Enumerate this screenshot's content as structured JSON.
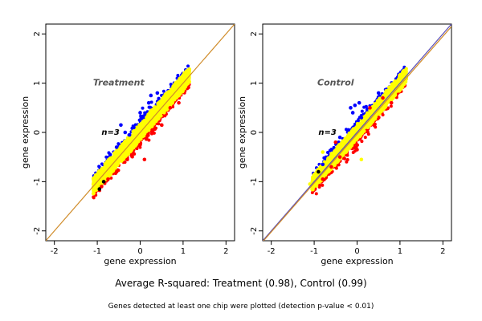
{
  "chart_data": [
    {
      "type": "scatter",
      "title": "Treatment",
      "annotation": "n=3",
      "xlabel": "gene expression",
      "ylabel": "gene expression",
      "xlim": [
        -2.2,
        2.2
      ],
      "ylim": [
        -2.2,
        2.2
      ],
      "xticks": [
        -2,
        -1,
        0,
        1,
        2
      ],
      "yticks": [
        -2,
        -1,
        0,
        1,
        2
      ],
      "point_cloud": {
        "x_range": [
          -1.1,
          1.15
        ],
        "spread": 0.12
      },
      "series": [
        {
          "color": "#ffff00",
          "points": [
            [
              -1.05,
              -1.1
            ],
            [
              -0.9,
              -0.95
            ],
            [
              -0.7,
              -0.6
            ],
            [
              -0.5,
              -0.45
            ],
            [
              -0.3,
              -0.35
            ],
            [
              0.0,
              0.05
            ],
            [
              0.3,
              0.25
            ],
            [
              0.5,
              0.55
            ],
            [
              0.8,
              0.75
            ],
            [
              1.1,
              1.05
            ]
          ]
        },
        {
          "color": "#ff0000",
          "points": [
            [
              -0.9,
              -1.1
            ],
            [
              -0.75,
              -0.95
            ],
            [
              -0.55,
              -0.8
            ],
            [
              -0.3,
              -0.55
            ],
            [
              0.0,
              -0.25
            ],
            [
              0.1,
              -0.55
            ],
            [
              0.3,
              0.05
            ],
            [
              0.5,
              0.15
            ],
            [
              0.7,
              0.5
            ],
            [
              0.9,
              0.6
            ]
          ]
        },
        {
          "color": "#0000ff",
          "points": [
            [
              -0.7,
              -0.45
            ],
            [
              -0.55,
              -0.3
            ],
            [
              -0.45,
              0.15
            ],
            [
              -0.35,
              0.0
            ],
            [
              -0.25,
              -0.05
            ],
            [
              -0.15,
              0.1
            ],
            [
              0.0,
              0.4
            ],
            [
              0.2,
              0.6
            ],
            [
              0.25,
              0.75
            ],
            [
              0.4,
              0.8
            ]
          ]
        },
        {
          "color": "#000000",
          "points": [
            [
              -0.95,
              -1.15
            ],
            [
              -0.85,
              -1.0
            ]
          ]
        }
      ],
      "reference_lines": [
        {
          "color": "#d08c2a",
          "from": [
            -2.2,
            -2.2
          ],
          "to": [
            2.2,
            2.2
          ]
        }
      ]
    },
    {
      "type": "scatter",
      "title": "Control",
      "annotation": "n=3",
      "xlabel": "gene expression",
      "ylabel": "gene expression",
      "xlim": [
        -2.2,
        2.2
      ],
      "ylim": [
        -2.2,
        2.2
      ],
      "xticks": [
        -2,
        -1,
        0,
        1,
        2
      ],
      "yticks": [
        -2,
        -1,
        0,
        1,
        2
      ],
      "point_cloud": {
        "x_range": [
          -1.05,
          1.15
        ],
        "spread": 0.11
      },
      "series": [
        {
          "color": "#ffff00",
          "points": [
            [
              -1.1,
              -1.05
            ],
            [
              -0.9,
              -0.95
            ],
            [
              -0.7,
              -0.6
            ],
            [
              -0.5,
              -0.55
            ],
            [
              -0.2,
              -0.15
            ],
            [
              0.0,
              0.0
            ],
            [
              0.3,
              0.3
            ],
            [
              0.5,
              0.45
            ],
            [
              0.8,
              0.8
            ],
            [
              1.1,
              1.1
            ],
            [
              -0.8,
              -0.4
            ],
            [
              0.1,
              -0.55
            ]
          ]
        },
        {
          "color": "#ff0000",
          "points": [
            [
              -0.8,
              -0.95
            ],
            [
              -0.6,
              -0.7
            ],
            [
              -0.4,
              -0.5
            ],
            [
              0.0,
              -0.35
            ],
            [
              0.3,
              0.5
            ],
            [
              0.6,
              0.7
            ],
            [
              0.8,
              0.6
            ],
            [
              -0.5,
              -0.2
            ]
          ]
        },
        {
          "color": "#0000ff",
          "points": [
            [
              -0.8,
              -0.65
            ],
            [
              -0.6,
              -0.35
            ],
            [
              -0.4,
              -0.1
            ],
            [
              -0.2,
              0.05
            ],
            [
              0.1,
              0.3
            ],
            [
              -0.1,
              0.4
            ],
            [
              -0.05,
              0.55
            ],
            [
              0.05,
              0.6
            ],
            [
              -0.15,
              0.5
            ],
            [
              0.5,
              0.8
            ]
          ]
        },
        {
          "color": "#000000",
          "points": [
            [
              -0.9,
              -0.8
            ]
          ]
        }
      ],
      "reference_lines": [
        {
          "color": "#5b4fb8",
          "from": [
            -2.2,
            -2.2
          ],
          "to": [
            2.2,
            2.2
          ]
        },
        {
          "color": "#d08c2a",
          "from": [
            -2.2,
            -2.22
          ],
          "to": [
            2.2,
            2.15
          ]
        }
      ]
    }
  ],
  "footer": {
    "summary": "Average R-squared: Treatment (0.98), Control (0.99)",
    "note": "Genes detected at least one chip were plotted (detection p-value < 0.01)"
  }
}
